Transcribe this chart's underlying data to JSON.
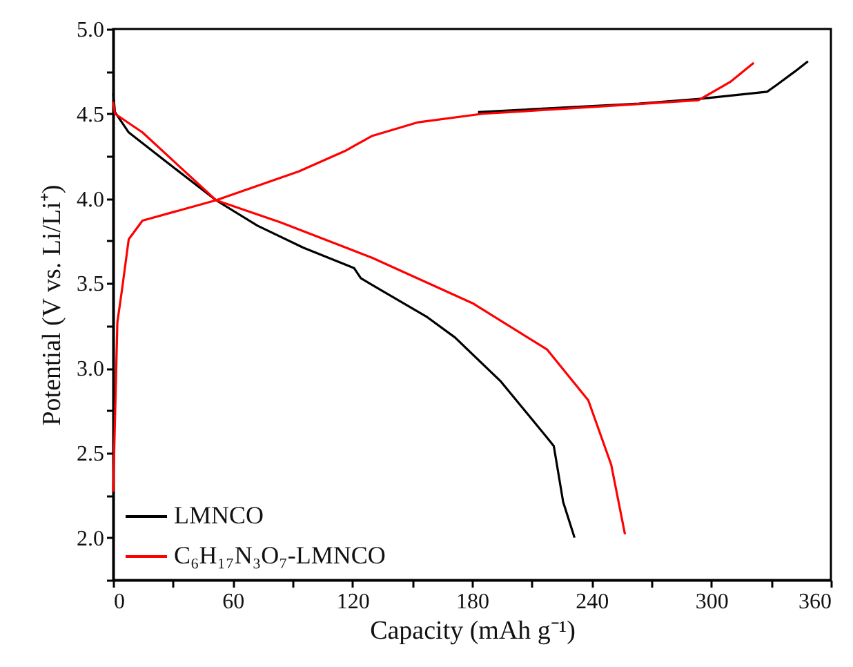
{
  "chart_data": {
    "type": "line",
    "xlabel": "Capacity (mAh g⁻¹)",
    "ylabel": "Potential (V vs. Li/Li⁺)",
    "xlim": [
      0,
      360
    ],
    "xticks": [
      0,
      {
        "value": 30,
        "label": null
      },
      60,
      {
        "value": 90,
        "label": null
      },
      120,
      {
        "value": 150,
        "label": null
      },
      180,
      {
        "value": 210,
        "label": null
      },
      240,
      {
        "value": 270,
        "label": null
      },
      300,
      {
        "value": 330,
        "label": null
      },
      360
    ],
    "ylim": [
      1.75,
      5.0
    ],
    "yticks": [
      {
        "value": 1.75,
        "label": null
      },
      {
        "value": 2,
        "label": "2.0"
      },
      {
        "value": 2.25,
        "label": null
      },
      2.5,
      {
        "value": 2.75,
        "label": null
      },
      {
        "value": 3,
        "label": "3.0"
      },
      {
        "value": 3.25,
        "label": null
      },
      3.5,
      {
        "value": 3.75,
        "label": null
      },
      {
        "value": 4,
        "label": "4.0"
      },
      {
        "value": 4.25,
        "label": null
      },
      4.5,
      {
        "value": 4.75,
        "label": null
      },
      {
        "value": 5,
        "label": "5.0"
      }
    ],
    "grid": false,
    "legend": "bottom left",
    "line_style": "solid",
    "marker": "none",
    "series": [
      {
        "name": "LMNCO",
        "color": "#000000",
        "x": [
          0,
          0.9,
          7.8,
          26.3,
          51.6,
          72.4,
          95.4,
          120.8,
          124.2,
          130,
          157.6,
          171.5,
          194.5,
          217.6,
          221,
          225.7,
          231.4
        ],
        "values": [
          4.62,
          4.51,
          4.39,
          4.22,
          3.99,
          3.84,
          3.71,
          3.59,
          3.53,
          3.49,
          3.3,
          3.18,
          2.92,
          2.59,
          2.54,
          2.21,
          2.0
        ]
      },
      {
        "name": "C₆H₁₇N₃O₇-LMNCO",
        "color": "#ff0000",
        "x": [
          0,
          0.9,
          14.7,
          51.6,
          83.9,
          130,
          180.7,
          217.6,
          238.3,
          249.8,
          256.7
        ],
        "values": [
          4.57,
          4.5,
          4.39,
          3.99,
          3.86,
          3.65,
          3.38,
          3.11,
          2.81,
          2.43,
          2.02
        ]
      },
      {
        "color": "#000000",
        "x": [
          183,
          263.7,
          296,
          328,
          332.8,
          342,
          348.5
        ],
        "values": [
          4.51,
          4.56,
          4.59,
          4.63,
          4.67,
          4.75,
          4.81
        ]
      },
      {
        "color": "#ff0000",
        "x": [
          0,
          2.1,
          4.4,
          7.8,
          14.7,
          51.6,
          93.1,
          116.2,
          130,
          153,
          185.3,
          240.6,
          293.6,
          309.8,
          321.3
        ],
        "values": [
          2.27,
          3.27,
          3.46,
          3.76,
          3.87,
          3.99,
          4.16,
          4.28,
          4.37,
          4.45,
          4.5,
          4.54,
          4.58,
          4.69,
          4.8
        ]
      }
    ]
  }
}
